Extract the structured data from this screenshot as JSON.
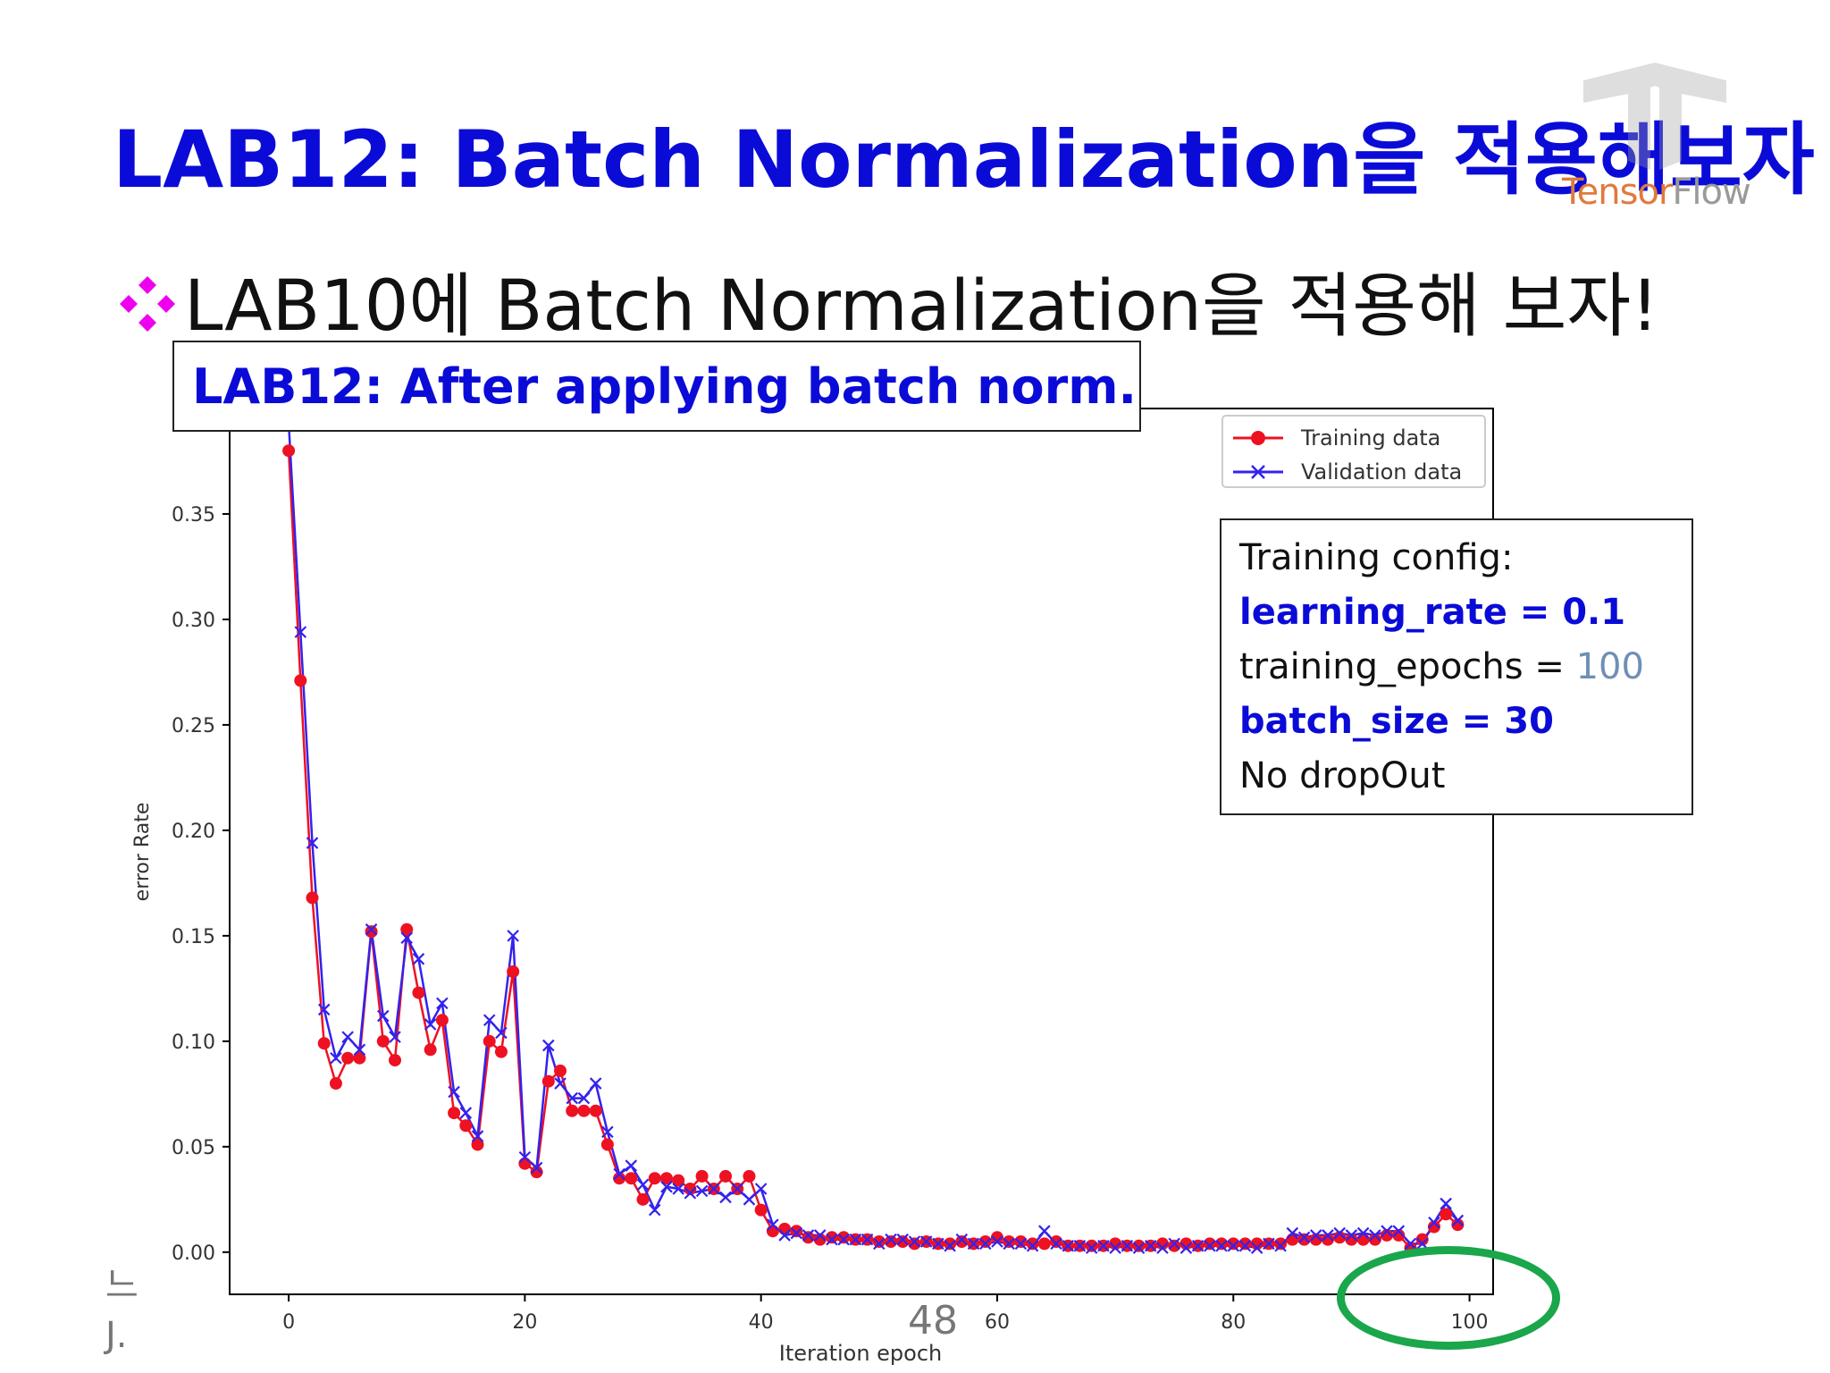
{
  "slide": {
    "title": "LAB12: Batch Normalization을 적용해보자",
    "bullet": "LAB10에 Batch Normalization을 적용해 보자!",
    "box_title": "LAB12: After applying batch norm.",
    "page_number": "48",
    "left_fragment": [
      "느",
      "J."
    ],
    "colors": {
      "title": "#0b0bd8",
      "bullet_icon": "#ee00ee",
      "highlight_circle": "#1aa64a"
    }
  },
  "logo": {
    "icon": "tensorflow-logo-icon",
    "text_part1": "Tensor",
    "text_part2": "Flow"
  },
  "config": {
    "heading": "Training config:",
    "learning_rate": "learning_rate = 0.1",
    "training_epochs_label": "training_epochs = ",
    "training_epochs_value": "100",
    "batch_size": "batch_size = 30",
    "dropout": "No dropOut"
  },
  "chart_data": {
    "type": "line",
    "title": "",
    "xlabel": "Iteration epoch",
    "ylabel": "error Rate",
    "xlim": [
      -5,
      102
    ],
    "ylim": [
      -0.02,
      0.4
    ],
    "xticks": [
      0,
      20,
      40,
      60,
      80,
      100
    ],
    "xtick_labels": [
      "0",
      "20",
      "40",
      "60",
      "80",
      "100"
    ],
    "yticks": [
      0.0,
      0.05,
      0.1,
      0.15,
      0.2,
      0.25,
      0.3,
      0.35
    ],
    "ytick_labels": [
      "0.00",
      "0.05",
      "0.10",
      "0.15",
      "0.20",
      "0.25",
      "0.30",
      "0.35"
    ],
    "legend_position": "top-right",
    "grid": false,
    "x": [
      0,
      1,
      2,
      3,
      4,
      5,
      6,
      7,
      8,
      9,
      10,
      11,
      12,
      13,
      14,
      15,
      16,
      17,
      18,
      19,
      20,
      21,
      22,
      23,
      24,
      25,
      26,
      27,
      28,
      29,
      30,
      31,
      32,
      33,
      34,
      35,
      36,
      37,
      38,
      39,
      40,
      41,
      42,
      43,
      44,
      45,
      46,
      47,
      48,
      49,
      50,
      51,
      52,
      53,
      54,
      55,
      56,
      57,
      58,
      59,
      60,
      61,
      62,
      63,
      64,
      65,
      66,
      67,
      68,
      69,
      70,
      71,
      72,
      73,
      74,
      75,
      76,
      77,
      78,
      79,
      80,
      81,
      82,
      83,
      84,
      85,
      86,
      87,
      88,
      89,
      90,
      91,
      92,
      93,
      94,
      95,
      96,
      97,
      98,
      99
    ],
    "series": [
      {
        "name": "Training data",
        "color": "#ee1122",
        "marker": "circle",
        "values": [
          0.38,
          0.271,
          0.168,
          0.099,
          0.08,
          0.092,
          0.092,
          0.152,
          0.1,
          0.091,
          0.153,
          0.123,
          0.096,
          0.11,
          0.066,
          0.06,
          0.051,
          0.1,
          0.095,
          0.133,
          0.042,
          0.038,
          0.081,
          0.086,
          0.067,
          0.067,
          0.067,
          0.051,
          0.035,
          0.035,
          0.025,
          0.035,
          0.035,
          0.034,
          0.03,
          0.036,
          0.03,
          0.036,
          0.03,
          0.036,
          0.02,
          0.01,
          0.011,
          0.01,
          0.007,
          0.006,
          0.007,
          0.007,
          0.006,
          0.006,
          0.005,
          0.005,
          0.005,
          0.004,
          0.005,
          0.004,
          0.004,
          0.005,
          0.004,
          0.005,
          0.007,
          0.005,
          0.005,
          0.004,
          0.004,
          0.005,
          0.003,
          0.003,
          0.003,
          0.003,
          0.004,
          0.003,
          0.003,
          0.003,
          0.004,
          0.003,
          0.004,
          0.003,
          0.004,
          0.004,
          0.004,
          0.004,
          0.004,
          0.004,
          0.004,
          0.006,
          0.006,
          0.006,
          0.006,
          0.007,
          0.006,
          0.006,
          0.006,
          0.008,
          0.008,
          0.002,
          0.006,
          0.012,
          0.018,
          0.013
        ]
      },
      {
        "name": "Validation data",
        "color": "#3322ee",
        "marker": "x",
        "values": [
          0.393,
          0.294,
          0.194,
          0.115,
          0.092,
          0.102,
          0.096,
          0.153,
          0.112,
          0.102,
          0.149,
          0.139,
          0.108,
          0.118,
          0.076,
          0.066,
          0.055,
          0.11,
          0.104,
          0.15,
          0.045,
          0.04,
          0.098,
          0.08,
          0.073,
          0.073,
          0.08,
          0.057,
          0.037,
          0.041,
          0.032,
          0.02,
          0.031,
          0.03,
          0.028,
          0.029,
          0.03,
          0.026,
          0.03,
          0.025,
          0.03,
          0.013,
          0.008,
          0.009,
          0.008,
          0.008,
          0.006,
          0.006,
          0.006,
          0.006,
          0.004,
          0.006,
          0.006,
          0.005,
          0.005,
          0.004,
          0.003,
          0.006,
          0.004,
          0.004,
          0.005,
          0.004,
          0.004,
          0.003,
          0.01,
          0.004,
          0.003,
          0.003,
          0.002,
          0.003,
          0.002,
          0.003,
          0.002,
          0.003,
          0.002,
          0.004,
          0.002,
          0.003,
          0.003,
          0.003,
          0.003,
          0.003,
          0.002,
          0.004,
          0.003,
          0.009,
          0.007,
          0.008,
          0.008,
          0.009,
          0.008,
          0.009,
          0.008,
          0.01,
          0.01,
          0.004,
          0.004,
          0.014,
          0.023,
          0.015
        ]
      }
    ]
  }
}
